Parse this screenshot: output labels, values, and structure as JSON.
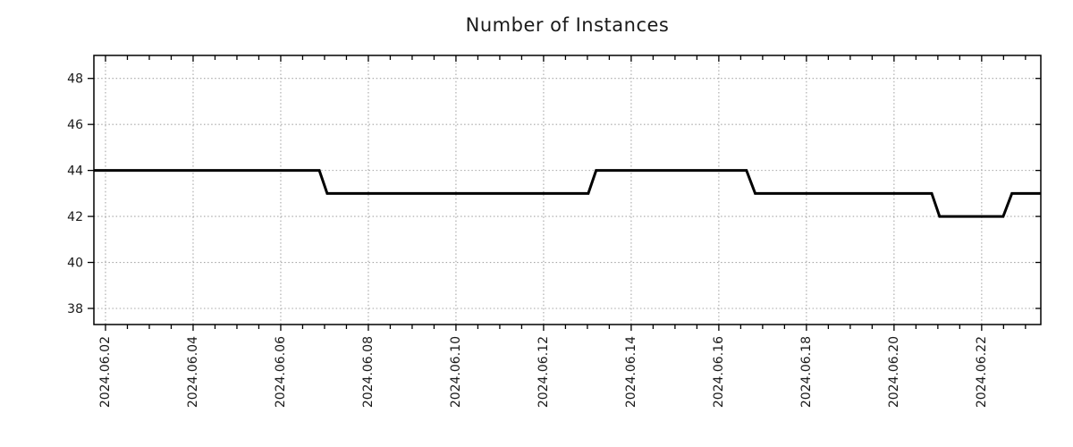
{
  "chart_data": {
    "type": "line",
    "title": "Number of Instances",
    "xlabel": "",
    "ylabel": "",
    "x_unit": "day of June 2024 (fractional day-of-month)",
    "xlim": [
      1.735,
      23.35
    ],
    "ylim": [
      37.3,
      49.0
    ],
    "x_major_ticks": [
      {
        "day": 2,
        "label": "2024.06.02"
      },
      {
        "day": 4,
        "label": "2024.06.04"
      },
      {
        "day": 6,
        "label": "2024.06.06"
      },
      {
        "day": 8,
        "label": "2024.06.08"
      },
      {
        "day": 10,
        "label": "2024.06.10"
      },
      {
        "day": 12,
        "label": "2024.06.12"
      },
      {
        "day": 14,
        "label": "2024.06.14"
      },
      {
        "day": 16,
        "label": "2024.06.16"
      },
      {
        "day": 18,
        "label": "2024.06.18"
      },
      {
        "day": 20,
        "label": "2024.06.20"
      },
      {
        "day": 22,
        "label": "2024.06.22"
      }
    ],
    "x_minor_step_days": 0.5,
    "y_ticks": [
      38,
      40,
      42,
      44,
      46,
      48
    ],
    "grid": true,
    "legend": "none",
    "series": [
      {
        "name": "instances",
        "points": [
          [
            1.735,
            44
          ],
          [
            6.88,
            44
          ],
          [
            7.06,
            43
          ],
          [
            13.02,
            43
          ],
          [
            13.2,
            44
          ],
          [
            16.63,
            44
          ],
          [
            16.83,
            43
          ],
          [
            20.86,
            43
          ],
          [
            21.04,
            42
          ],
          [
            22.49,
            42
          ],
          [
            22.69,
            43
          ],
          [
            23.35,
            43
          ]
        ]
      }
    ],
    "steps": [
      {
        "value": 44,
        "from": "start (~2024.06.01 18:00)",
        "to": "~2024.06.07 00:00"
      },
      {
        "value": 43,
        "from": "~2024.06.07 00:00",
        "to": "~2024.06.13 02:00"
      },
      {
        "value": 44,
        "from": "~2024.06.13 02:00",
        "to": "~2024.06.16 17:00"
      },
      {
        "value": 43,
        "from": "~2024.06.16 17:00",
        "to": "~2024.06.20 22:00"
      },
      {
        "value": 42,
        "from": "~2024.06.20 22:00",
        "to": "~2024.06.22 13:00"
      },
      {
        "value": 43,
        "from": "~2024.06.22 13:00",
        "to": "end (~2024.06.23 08:00)"
      }
    ],
    "colors": {
      "line": "#000000",
      "grid": "#a6a6a6",
      "axis": "#000000",
      "title_text": "#1a1a1a",
      "tick_label_text": "#1a1a1a",
      "background": "#ffffff"
    }
  }
}
